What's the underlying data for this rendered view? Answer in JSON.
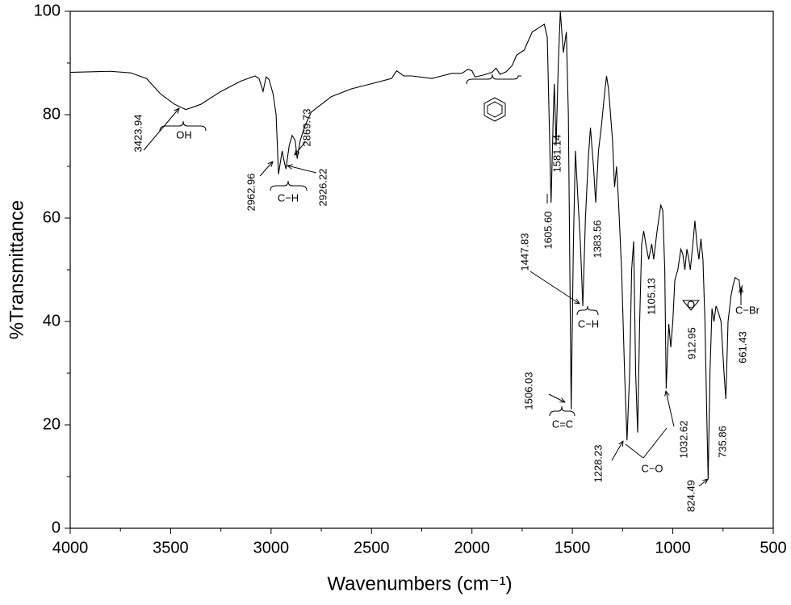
{
  "chart_data": {
    "type": "line",
    "x_label": "Wavenumbers (cm⁻¹)",
    "y_label": "%Transmittance",
    "xlim": [
      4000,
      500
    ],
    "xticks": [
      4000,
      3500,
      3000,
      2500,
      2000,
      1500,
      1000,
      500
    ],
    "ylim": [
      0,
      100
    ],
    "yticks": [
      0,
      20,
      40,
      60,
      80,
      100
    ],
    "color": "#000000",
    "x": [
      4000,
      3800,
      3700,
      3620,
      3550,
      3480,
      3424,
      3350,
      3250,
      3150,
      3080,
      3060,
      3040,
      3025,
      3010,
      2990,
      2975,
      2963,
      2945,
      2935,
      2926,
      2910,
      2895,
      2880,
      2870,
      2855,
      2830,
      2800,
      2750,
      2700,
      2600,
      2500,
      2400,
      2375,
      2340,
      2300,
      2200,
      2150,
      2100,
      2050,
      2020,
      2000,
      1985,
      1950,
      1900,
      1880,
      1860,
      1830,
      1800,
      1778,
      1740,
      1700,
      1660,
      1640,
      1625,
      1606,
      1595,
      1590,
      1581,
      1570,
      1560,
      1545,
      1530,
      1520,
      1506,
      1495,
      1485,
      1470,
      1460,
      1448,
      1435,
      1420,
      1410,
      1395,
      1384,
      1370,
      1355,
      1340,
      1330,
      1320,
      1300,
      1290,
      1280,
      1270,
      1255,
      1240,
      1228,
      1215,
      1205,
      1195,
      1185,
      1175,
      1165,
      1155,
      1145,
      1130,
      1120,
      1105,
      1095,
      1080,
      1060,
      1050,
      1040,
      1033,
      1020,
      1010,
      1000,
      990,
      975,
      960,
      950,
      940,
      930,
      920,
      913,
      900,
      890,
      880,
      870,
      860,
      850,
      840,
      830,
      824,
      815,
      805,
      795,
      785,
      775,
      760,
      745,
      736,
      725,
      710,
      700,
      690,
      670,
      661,
      655
    ],
    "values": [
      88.2,
      88.4,
      88.1,
      87,
      84,
      82,
      81,
      82,
      84.5,
      86.5,
      87.5,
      87,
      84.5,
      87.3,
      86.8,
      84,
      80,
      68.5,
      73,
      71,
      69.5,
      74,
      76,
      75,
      71.5,
      75,
      78,
      80.5,
      82,
      83.5,
      85,
      86,
      87,
      88.5,
      87.5,
      87.5,
      87,
      87.5,
      88,
      88,
      88.8,
      88.5,
      87.3,
      87.6,
      88.2,
      89,
      87.8,
      88.3,
      89.5,
      91.5,
      92.5,
      96,
      97,
      97.5,
      95,
      63,
      80,
      86,
      74,
      90,
      100,
      92,
      96,
      80,
      23,
      55,
      73,
      62,
      55,
      43,
      60,
      72,
      77.5,
      70,
      63,
      73,
      78,
      84,
      87.5,
      85,
      75,
      66,
      70,
      63,
      50,
      30,
      17,
      30,
      50,
      55.5,
      30,
      18.5,
      40,
      55,
      57.5,
      54,
      52,
      55,
      52,
      57,
      62.5,
      61.5,
      50,
      27,
      39.5,
      35,
      40,
      48,
      50,
      54,
      53,
      50,
      54,
      52,
      50,
      55,
      59.5,
      55,
      52,
      56,
      52,
      40,
      20,
      9.5,
      30,
      42.5,
      40,
      43,
      42,
      40,
      30,
      25,
      40,
      45,
      47,
      48.5,
      48,
      45,
      47
    ],
    "annotations": [
      "3423.94",
      "OH",
      "2962.96",
      "C−H",
      "2926.22",
      "2869.73",
      "1605.60",
      "1581.14",
      "1383.56",
      "1447.83",
      "C−H",
      "1105.13",
      "912.95",
      "O",
      "C−Br",
      "661.43",
      "1506.03",
      "C=C",
      "1228.23",
      "C−O",
      "1032.62",
      "824.49",
      "735.86"
    ]
  }
}
